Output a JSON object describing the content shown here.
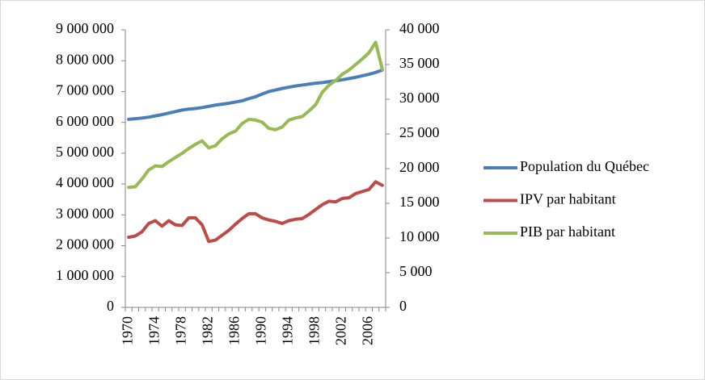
{
  "chart_data": {
    "type": "line",
    "categories": [
      "1970",
      null,
      null,
      null,
      "1974",
      null,
      null,
      null,
      "1978",
      null,
      null,
      null,
      "1982",
      null,
      null,
      null,
      "1986",
      null,
      null,
      null,
      "1990",
      null,
      null,
      null,
      "1994",
      null,
      null,
      null,
      "1998",
      null,
      null,
      null,
      "2002",
      null,
      null,
      null,
      "2006",
      null,
      null
    ],
    "series": [
      {
        "name": "Population du Québec",
        "color": "#4a7ebb",
        "axis": "y",
        "values": [
          6100000,
          6120000,
          6140000,
          6170000,
          6210000,
          6250000,
          6300000,
          6350000,
          6400000,
          6430000,
          6450000,
          6480000,
          6520000,
          6560000,
          6590000,
          6620000,
          6660000,
          6700000,
          6770000,
          6830000,
          6920000,
          7000000,
          7050000,
          7100000,
          7140000,
          7180000,
          7210000,
          7240000,
          7270000,
          7290000,
          7320000,
          7350000,
          7380000,
          7420000,
          7460000,
          7510000,
          7560000,
          7620000,
          7700000
        ]
      },
      {
        "name": "IPV par habitant",
        "color": "#be4b48",
        "axis": "y2",
        "values": [
          10100,
          10300,
          10900,
          12100,
          12500,
          11700,
          12500,
          11900,
          11800,
          12900,
          12900,
          11900,
          9500,
          9700,
          10400,
          11100,
          12000,
          12800,
          13500,
          13500,
          12900,
          12600,
          12400,
          12100,
          12500,
          12700,
          12800,
          13400,
          14100,
          14800,
          15300,
          15200,
          15700,
          15800,
          16400,
          16700,
          17000,
          18100,
          17600
        ]
      },
      {
        "name": "PIB par habitant",
        "color": "#98b954",
        "axis": "y2",
        "values": [
          17300,
          17400,
          18500,
          19800,
          20400,
          20300,
          21000,
          21600,
          22200,
          22900,
          23500,
          24000,
          23000,
          23300,
          24300,
          25000,
          25400,
          26500,
          27100,
          27000,
          26700,
          25800,
          25600,
          26000,
          27000,
          27300,
          27500,
          28300,
          29200,
          31000,
          32000,
          32700,
          33600,
          34200,
          35000,
          35800,
          36700,
          38200,
          34300
        ]
      }
    ],
    "ylim": [
      0,
      9000000
    ],
    "yticks": [
      0,
      {
        "value": 1000000,
        "label": "1 000 000"
      },
      {
        "value": 2000000,
        "label": "2 000 000"
      },
      {
        "value": 3000000,
        "label": "3 000 000"
      },
      {
        "value": 4000000,
        "label": "4 000 000"
      },
      {
        "value": 5000000,
        "label": "5 000 000"
      },
      {
        "value": 6000000,
        "label": "6 000 000"
      },
      {
        "value": 7000000,
        "label": "7 000 000"
      },
      {
        "value": 8000000,
        "label": "8 000 000"
      },
      {
        "value": 9000000,
        "label": "9 000 000"
      }
    ],
    "y2lim": [
      0,
      40000
    ],
    "y2ticks": [
      0,
      {
        "value": 5000,
        "label": "5 000"
      },
      {
        "value": 10000,
        "label": "10 000"
      },
      {
        "value": 15000,
        "label": "15 000"
      },
      {
        "value": 20000,
        "label": "20 000"
      },
      {
        "value": 25000,
        "label": "25 000"
      },
      {
        "value": 30000,
        "label": "30 000"
      },
      {
        "value": 35000,
        "label": "35 000"
      },
      {
        "value": 40000,
        "label": "40 000"
      }
    ],
    "grid": false,
    "legend": "right"
  }
}
